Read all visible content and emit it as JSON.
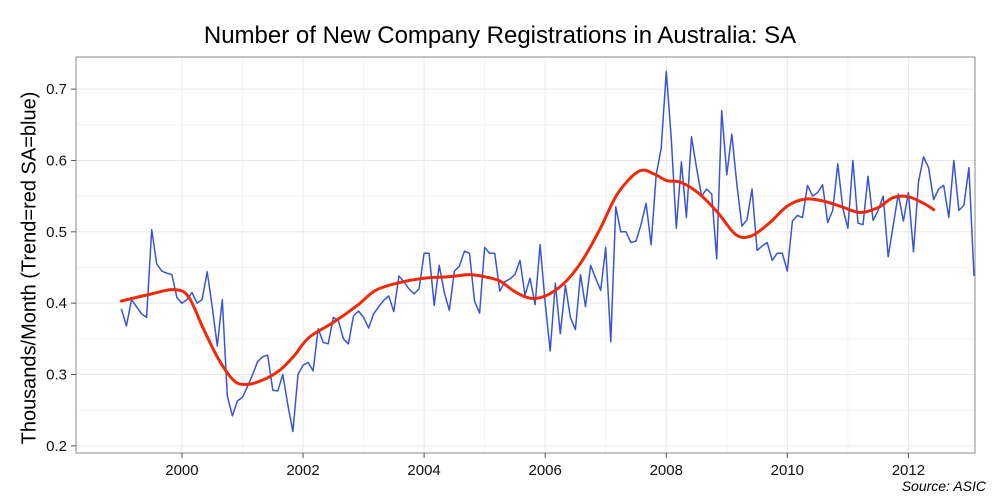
{
  "chart_data": {
    "type": "line",
    "title": "Number of New Company Registrations in Australia: SA",
    "xlabel": "",
    "ylabel": "Thousands/Month (Trend=red SA=blue)",
    "source": "Source: ASIC",
    "xlim": [
      1998.25,
      2013.1
    ],
    "ylim": [
      0.19,
      0.745
    ],
    "x_ticks": [
      2000,
      2002,
      2004,
      2006,
      2008,
      2010,
      2012
    ],
    "x_tick_labels": [
      "2000",
      "2002",
      "2004",
      "2006",
      "2008",
      "2010",
      "2012"
    ],
    "y_ticks": [
      0.2,
      0.3,
      0.4,
      0.5,
      0.6,
      0.7
    ],
    "y_tick_labels": [
      "0.2",
      "0.3",
      "0.4",
      "0.5",
      "0.6",
      "0.7"
    ],
    "grid": true,
    "colors": {
      "sa": "#3a55d3",
      "trend": "#ee2a0c",
      "grid": "#e8e8e8",
      "frame": "#8a8a8a"
    },
    "series": [
      {
        "key": "sa",
        "x_start": 1999.0,
        "step_months": 1,
        "values": [
          0.392,
          0.368,
          0.405,
          0.395,
          0.385,
          0.38,
          0.503,
          0.455,
          0.445,
          0.442,
          0.44,
          0.408,
          0.4,
          0.405,
          0.415,
          0.4,
          0.405,
          0.444,
          0.395,
          0.34,
          0.405,
          0.27,
          0.242,
          0.263,
          0.268,
          0.283,
          0.3,
          0.318,
          0.325,
          0.327,
          0.278,
          0.277,
          0.3,
          0.257,
          0.22,
          0.3,
          0.313,
          0.317,
          0.305,
          0.364,
          0.345,
          0.343,
          0.38,
          0.376,
          0.35,
          0.343,
          0.382,
          0.389,
          0.38,
          0.365,
          0.385,
          0.395,
          0.404,
          0.41,
          0.388,
          0.438,
          0.43,
          0.42,
          0.413,
          0.42,
          0.47,
          0.47,
          0.397,
          0.453,
          0.415,
          0.39,
          0.445,
          0.452,
          0.473,
          0.47,
          0.403,
          0.386,
          0.478,
          0.47,
          0.47,
          0.417,
          0.43,
          0.434,
          0.44,
          0.46,
          0.411,
          0.435,
          0.398,
          0.482,
          0.4,
          0.333,
          0.428,
          0.357,
          0.425,
          0.38,
          0.363,
          0.44,
          0.395,
          0.453,
          0.435,
          0.418,
          0.478,
          0.346,
          0.535,
          0.5,
          0.5,
          0.485,
          0.487,
          0.51,
          0.54,
          0.482,
          0.58,
          0.617,
          0.725,
          0.63,
          0.505,
          0.598,
          0.52,
          0.633,
          0.59,
          0.55,
          0.56,
          0.553,
          0.462,
          0.67,
          0.58,
          0.637,
          0.566,
          0.508,
          0.517,
          0.56,
          0.474,
          0.48,
          0.485,
          0.46,
          0.47,
          0.47,
          0.445,
          0.515,
          0.523,
          0.52,
          0.565,
          0.55,
          0.555,
          0.566,
          0.513,
          0.53,
          0.595,
          0.533,
          0.505,
          0.6,
          0.512,
          0.51,
          0.578,
          0.516,
          0.53,
          0.55,
          0.465,
          0.51,
          0.553,
          0.515,
          0.555,
          0.472,
          0.57,
          0.605,
          0.59,
          0.545,
          0.56,
          0.565,
          0.52,
          0.6,
          0.53,
          0.537,
          0.59,
          0.438
        ]
      },
      {
        "key": "trend",
        "x": [
          1999.0,
          1999.5,
          1999.85,
          2000.1,
          2000.35,
          2000.6,
          2000.85,
          2001.05,
          2001.3,
          2001.6,
          2001.85,
          2002.1,
          2002.5,
          2002.9,
          2003.2,
          2003.6,
          2004.0,
          2004.4,
          2004.75,
          2005.0,
          2005.25,
          2005.5,
          2005.75,
          2006.0,
          2006.3,
          2006.6,
          2006.9,
          2007.2,
          2007.55,
          2007.8,
          2008.0,
          2008.25,
          2008.55,
          2008.85,
          2009.15,
          2009.4,
          2009.7,
          2010.0,
          2010.3,
          2010.6,
          2010.9,
          2011.2,
          2011.5,
          2011.75,
          2012.0,
          2012.25,
          2012.42
        ],
        "values": [
          0.403,
          0.413,
          0.419,
          0.41,
          0.365,
          0.322,
          0.292,
          0.286,
          0.291,
          0.305,
          0.326,
          0.352,
          0.373,
          0.397,
          0.418,
          0.429,
          0.435,
          0.437,
          0.44,
          0.437,
          0.431,
          0.416,
          0.407,
          0.41,
          0.427,
          0.458,
          0.503,
          0.554,
          0.585,
          0.581,
          0.572,
          0.569,
          0.553,
          0.527,
          0.496,
          0.494,
          0.512,
          0.536,
          0.546,
          0.543,
          0.535,
          0.527,
          0.534,
          0.548,
          0.549,
          0.54,
          0.531
        ]
      }
    ]
  }
}
